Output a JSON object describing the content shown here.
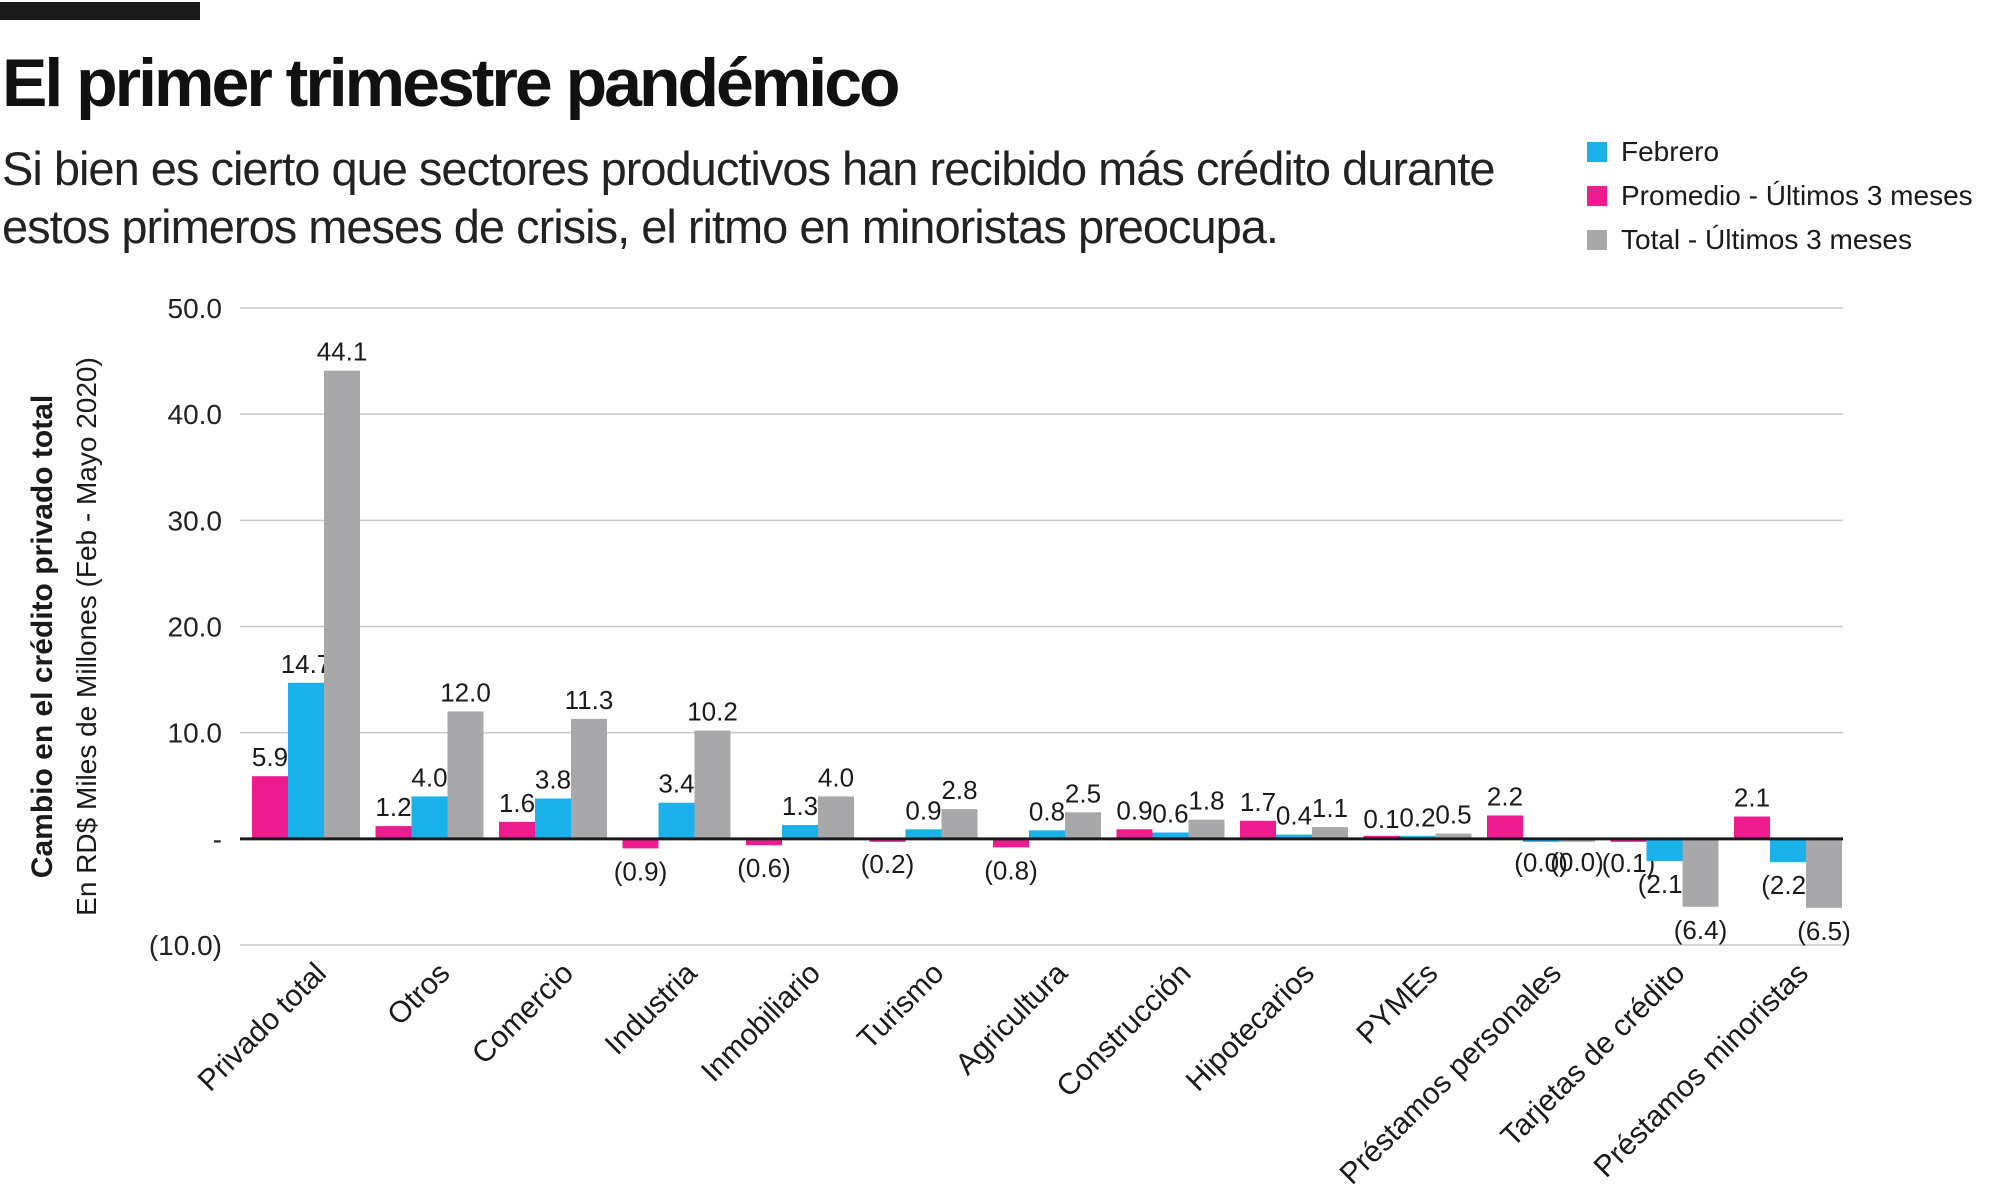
{
  "title": "El primer trimestre pandémico",
  "subtitle": "Si bien es cierto que sectores productivos han recibido más crédito durante estos primeros meses de crisis, el ritmo en minoristas preocupa.",
  "legend": [
    {
      "label": "Febrero",
      "color": "#1bb2ec"
    },
    {
      "label": "Promedio - Últimos 3 meses",
      "color": "#ee1c8e"
    },
    {
      "label": "Total - Últimos 3 meses",
      "color": "#a8a8aa"
    }
  ],
  "chart_data": {
    "type": "bar",
    "title": "El primer trimestre pandémico",
    "ylabel": "Cambio en el crédito privado total",
    "ylabel_sub": "En RD$ Miles de Millones (Feb - Mayo 2020)",
    "ylim": [
      -10,
      50
    ],
    "yticks": [
      50,
      40,
      30,
      20,
      10,
      0,
      -10
    ],
    "ytick_labels": [
      "50.0",
      "40.0",
      "30.0",
      "20.0",
      "10.0",
      "-",
      "(10.0)"
    ],
    "grid": true,
    "legend_position": "top-right",
    "categories": [
      "Privado total",
      "Otros",
      "Comercio",
      "Industria",
      "Inmobiliario",
      "Turismo",
      "Agricultura",
      "Construcción",
      "Hipotecarios",
      "PYMEs",
      "Préstamos personales",
      "Tarjetas de crédito",
      "Préstamos minoristas"
    ],
    "series": [
      {
        "name": "Promedio - Últimos 3 meses",
        "color": "#ee1c8e",
        "values": [
          5.9,
          1.2,
          1.6,
          -0.9,
          -0.6,
          -0.2,
          -0.8,
          0.9,
          1.7,
          0.1,
          2.2,
          -0.1,
          2.1
        ],
        "labels": [
          "5.9",
          "1.2",
          "1.6",
          "(0.9)",
          "(0.6)",
          "(0.2)",
          "(0.8)",
          "0.9",
          "1.7",
          "0.1",
          "2.2",
          "(0.1)",
          "2.1"
        ]
      },
      {
        "name": "Febrero",
        "color": "#1bb2ec",
        "values": [
          14.7,
          4.0,
          3.8,
          3.4,
          1.3,
          0.9,
          0.8,
          0.6,
          0.4,
          0.2,
          -0.04,
          -2.1,
          -2.2
        ],
        "labels": [
          "14.7",
          "4.0",
          "3.8",
          "3.4",
          "1.3",
          "0.9",
          "0.8",
          "0.6",
          "0.4",
          "0.2",
          "(0.0)",
          "(2.1)",
          "(2.2)"
        ]
      },
      {
        "name": "Total - Últimos 3 meses",
        "color": "#a8a8aa",
        "values": [
          44.1,
          12.0,
          11.3,
          10.2,
          4.0,
          2.8,
          2.5,
          1.8,
          1.1,
          0.5,
          -0.02,
          -6.4,
          -6.5
        ],
        "labels": [
          "44.1",
          "12.0",
          "11.3",
          "10.2",
          "4.0",
          "2.8",
          "2.5",
          "1.8",
          "1.1",
          "0.5",
          "(0.0)",
          "(6.4)",
          "(6.5)"
        ]
      }
    ]
  }
}
